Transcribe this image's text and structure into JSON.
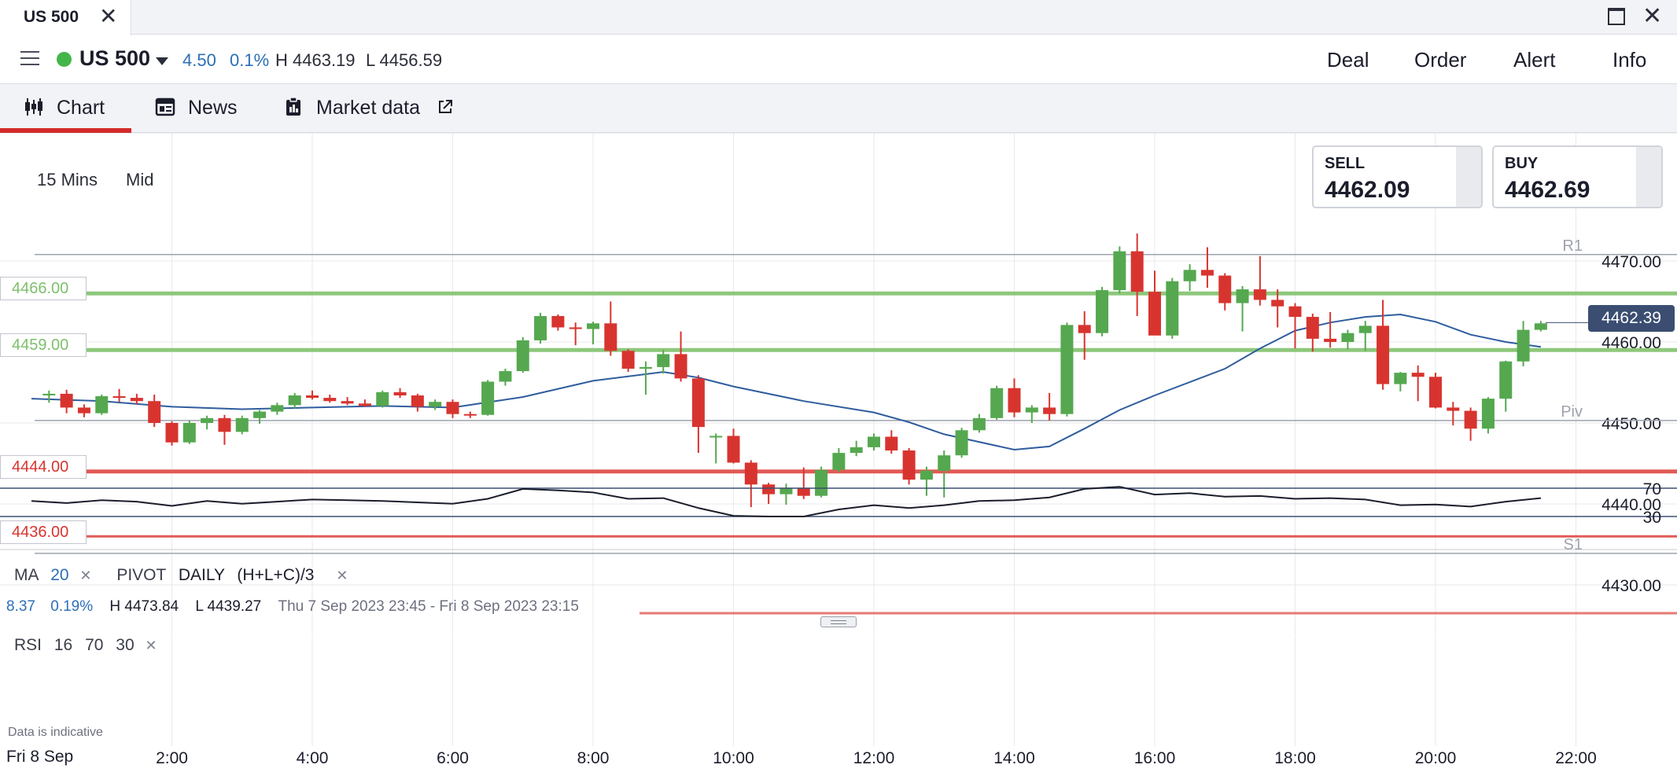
{
  "window": {
    "tab_title": "US 500",
    "close_glyph": "✕",
    "maximize_icon": "maximize-icon",
    "close_window_glyph": "✕"
  },
  "instrument": {
    "name": "US 500",
    "status_color": "#44b649",
    "change": "4.50",
    "change_pct": "0.1%",
    "high": "H 4463.19",
    "low": "L 4456.59"
  },
  "actions": [
    "Deal",
    "Order",
    "Alert",
    "Info"
  ],
  "tabs": [
    {
      "label": "Chart",
      "icon": "candlestick-icon",
      "active": true
    },
    {
      "label": "News",
      "icon": "newspaper-icon",
      "active": false
    },
    {
      "label": "Market data",
      "icon": "clipboard-icon",
      "external_icon": "external-link-icon",
      "active": false
    }
  ],
  "chart_controls": {
    "interval": "15 Mins",
    "price_type": "Mid"
  },
  "quotes": {
    "sell_label": "SELL",
    "sell_price": "4462.09",
    "buy_label": "BUY",
    "buy_price": "4462.69"
  },
  "indicators": {
    "ma_label": "MA",
    "ma_period": "20",
    "ma_remove": "✕",
    "pivot_label": "PIVOT",
    "pivot_period": "DAILY",
    "pivot_formula": "(H+L+C)/3",
    "pivot_remove": "✕"
  },
  "day_info": {
    "change": "8.37",
    "change_pct": "0.19%",
    "high": "H 4473.84",
    "low": "L 4439.27",
    "range": "Thu 7 Sep 2023 23:45 - Fri 8 Sep 2023 23:15"
  },
  "rsi": {
    "label": "RSI",
    "period": "16",
    "upper": "70",
    "lower": "30",
    "remove": "✕"
  },
  "footer": {
    "indicative": "Data is indicative",
    "date": "Fri 8 Sep"
  },
  "colors": {
    "up": "#55a84f",
    "down": "#d8342f",
    "ma": "#2f5d9e",
    "support": "#e25a55",
    "resistance": "#8ec77b",
    "tag": "#3b4e72"
  },
  "chart_data": {
    "type": "candlestick",
    "x_ticks": [
      "2:00",
      "4:00",
      "6:00",
      "8:00",
      "10:00",
      "12:00",
      "14:00",
      "16:00",
      "18:00",
      "20:00",
      "22:00"
    ],
    "y_ticks": [
      "4470.00",
      "4460.00",
      "4450.00",
      "4440.00",
      "4430.00"
    ],
    "ylim": [
      4428,
      4478
    ],
    "current_price": "4462.39",
    "pivot_lines": [
      {
        "label": "R1",
        "value": 4470.8
      },
      {
        "label": "Piv",
        "value": 4450.3
      },
      {
        "label": "S1",
        "value": 4433.9
      }
    ],
    "alert_levels": [
      {
        "label": "4466.00",
        "value": 4466.0,
        "kind": "resistance"
      },
      {
        "label": "4459.00",
        "value": 4459.0,
        "kind": "resistance"
      },
      {
        "label": "4444.00",
        "value": 4444.0,
        "kind": "support"
      },
      {
        "label": "4436.00",
        "value": 4436.0,
        "kind": "support"
      }
    ],
    "candles": [
      {
        "t": "00:15",
        "o": 4453.4,
        "h": 4454.0,
        "l": 4452.5,
        "c": 4453.6
      },
      {
        "t": "00:30",
        "o": 4453.6,
        "h": 4454.1,
        "l": 4451.2,
        "c": 4451.9
      },
      {
        "t": "00:45",
        "o": 4451.9,
        "h": 4452.3,
        "l": 4450.7,
        "c": 4451.2
      },
      {
        "t": "01:00",
        "o": 4451.2,
        "h": 4453.5,
        "l": 4451.0,
        "c": 4453.3
      },
      {
        "t": "01:15",
        "o": 4453.3,
        "h": 4454.2,
        "l": 4452.6,
        "c": 4453.1
      },
      {
        "t": "01:30",
        "o": 4453.1,
        "h": 4453.6,
        "l": 4452.3,
        "c": 4452.7
      },
      {
        "t": "01:45",
        "o": 4452.7,
        "h": 4453.5,
        "l": 4449.5,
        "c": 4450.0
      },
      {
        "t": "02:00",
        "o": 4450.0,
        "h": 4450.2,
        "l": 4447.2,
        "c": 4447.6
      },
      {
        "t": "02:15",
        "o": 4447.6,
        "h": 4450.3,
        "l": 4447.4,
        "c": 4450.0
      },
      {
        "t": "02:30",
        "o": 4450.0,
        "h": 4450.9,
        "l": 4449.2,
        "c": 4450.6
      },
      {
        "t": "02:45",
        "o": 4450.6,
        "h": 4451.0,
        "l": 4447.3,
        "c": 4448.9
      },
      {
        "t": "03:00",
        "o": 4448.9,
        "h": 4450.9,
        "l": 4448.6,
        "c": 4450.6
      },
      {
        "t": "03:15",
        "o": 4450.6,
        "h": 4451.6,
        "l": 4449.9,
        "c": 4451.4
      },
      {
        "t": "03:30",
        "o": 4451.4,
        "h": 4452.5,
        "l": 4451.0,
        "c": 4452.2
      },
      {
        "t": "03:45",
        "o": 4452.2,
        "h": 4453.7,
        "l": 4451.8,
        "c": 4453.4
      },
      {
        "t": "04:00",
        "o": 4453.4,
        "h": 4454.0,
        "l": 4452.9,
        "c": 4453.1
      },
      {
        "t": "04:15",
        "o": 4453.1,
        "h": 4453.5,
        "l": 4452.5,
        "c": 4452.7
      },
      {
        "t": "04:30",
        "o": 4452.7,
        "h": 4453.2,
        "l": 4452.2,
        "c": 4452.4
      },
      {
        "t": "04:45",
        "o": 4452.4,
        "h": 4452.9,
        "l": 4452.0,
        "c": 4452.1
      },
      {
        "t": "05:00",
        "o": 4452.1,
        "h": 4454.0,
        "l": 4451.9,
        "c": 4453.8
      },
      {
        "t": "05:15",
        "o": 4453.8,
        "h": 4454.3,
        "l": 4453.1,
        "c": 4453.4
      },
      {
        "t": "05:30",
        "o": 4453.4,
        "h": 4453.6,
        "l": 4451.4,
        "c": 4452.0
      },
      {
        "t": "05:45",
        "o": 4452.0,
        "h": 4452.9,
        "l": 4451.6,
        "c": 4452.6
      },
      {
        "t": "06:00",
        "o": 4452.6,
        "h": 4452.9,
        "l": 4450.6,
        "c": 4451.1
      },
      {
        "t": "06:15",
        "o": 4451.1,
        "h": 4451.4,
        "l": 4450.6,
        "c": 4451.0
      },
      {
        "t": "06:30",
        "o": 4451.0,
        "h": 4455.3,
        "l": 4450.9,
        "c": 4455.1
      },
      {
        "t": "06:45",
        "o": 4455.1,
        "h": 4456.7,
        "l": 4454.6,
        "c": 4456.4
      },
      {
        "t": "07:00",
        "o": 4456.4,
        "h": 4460.6,
        "l": 4456.2,
        "c": 4460.2
      },
      {
        "t": "07:15",
        "o": 4460.2,
        "h": 4463.6,
        "l": 4459.8,
        "c": 4463.2
      },
      {
        "t": "07:30",
        "o": 4463.2,
        "h": 4463.4,
        "l": 4461.4,
        "c": 4461.8
      },
      {
        "t": "07:45",
        "o": 4461.8,
        "h": 4462.4,
        "l": 4459.6,
        "c": 4461.6
      },
      {
        "t": "08:00",
        "o": 4461.6,
        "h": 4462.5,
        "l": 4459.7,
        "c": 4462.3
      },
      {
        "t": "08:15",
        "o": 4462.3,
        "h": 4465.0,
        "l": 4458.3,
        "c": 4458.9
      },
      {
        "t": "08:30",
        "o": 4458.9,
        "h": 4459.1,
        "l": 4456.3,
        "c": 4456.7
      },
      {
        "t": "08:45",
        "o": 4456.7,
        "h": 4457.6,
        "l": 4453.5,
        "c": 4456.9
      },
      {
        "t": "09:00",
        "o": 4456.9,
        "h": 4459.0,
        "l": 4456.1,
        "c": 4458.5
      },
      {
        "t": "09:15",
        "o": 4458.5,
        "h": 4461.3,
        "l": 4455.1,
        "c": 4455.5
      },
      {
        "t": "09:30",
        "o": 4455.5,
        "h": 4455.9,
        "l": 4446.3,
        "c": 4449.5
      },
      {
        "t": "09:45",
        "o": 4448.4,
        "h": 4448.7,
        "l": 4445.0,
        "c": 4448.4
      },
      {
        "t": "10:00",
        "o": 4448.4,
        "h": 4449.3,
        "l": 4445.0,
        "c": 4445.1
      },
      {
        "t": "10:15",
        "o": 4445.1,
        "h": 4445.4,
        "l": 4439.6,
        "c": 4442.4
      },
      {
        "t": "10:30",
        "o": 4442.4,
        "h": 4442.6,
        "l": 4440.0,
        "c": 4441.2
      },
      {
        "t": "10:45",
        "o": 4441.2,
        "h": 4442.5,
        "l": 4439.9,
        "c": 4442.0
      },
      {
        "t": "11:00",
        "o": 4442.0,
        "h": 4444.5,
        "l": 4440.6,
        "c": 4441.0
      },
      {
        "t": "11:15",
        "o": 4441.0,
        "h": 4444.6,
        "l": 4440.8,
        "c": 4444.2
      },
      {
        "t": "11:30",
        "o": 4444.2,
        "h": 4446.9,
        "l": 4443.9,
        "c": 4446.3
      },
      {
        "t": "11:45",
        "o": 4446.3,
        "h": 4447.8,
        "l": 4445.9,
        "c": 4447.0
      },
      {
        "t": "12:00",
        "o": 4447.0,
        "h": 4448.7,
        "l": 4446.6,
        "c": 4448.3
      },
      {
        "t": "12:15",
        "o": 4448.3,
        "h": 4449.1,
        "l": 4446.2,
        "c": 4446.6
      },
      {
        "t": "12:30",
        "o": 4446.6,
        "h": 4446.9,
        "l": 4442.4,
        "c": 4443.0
      },
      {
        "t": "12:45",
        "o": 4443.0,
        "h": 4444.6,
        "l": 4441.0,
        "c": 4444.1
      },
      {
        "t": "13:00",
        "o": 4444.1,
        "h": 4446.6,
        "l": 4440.8,
        "c": 4446.0
      },
      {
        "t": "13:15",
        "o": 4446.0,
        "h": 4449.4,
        "l": 4445.7,
        "c": 4449.1
      },
      {
        "t": "13:30",
        "o": 4449.1,
        "h": 4451.1,
        "l": 4448.8,
        "c": 4450.6
      },
      {
        "t": "13:45",
        "o": 4450.6,
        "h": 4454.6,
        "l": 4450.4,
        "c": 4454.3
      },
      {
        "t": "14:00",
        "o": 4454.3,
        "h": 4455.5,
        "l": 4450.7,
        "c": 4451.3
      },
      {
        "t": "14:15",
        "o": 4451.3,
        "h": 4452.2,
        "l": 4450.0,
        "c": 4451.9
      },
      {
        "t": "14:30",
        "o": 4451.9,
        "h": 4453.7,
        "l": 4450.3,
        "c": 4451.1
      },
      {
        "t": "14:45",
        "o": 4451.1,
        "h": 4462.4,
        "l": 4450.8,
        "c": 4462.1
      },
      {
        "t": "15:00",
        "o": 4462.1,
        "h": 4463.8,
        "l": 4457.8,
        "c": 4461.1
      },
      {
        "t": "15:15",
        "o": 4461.1,
        "h": 4466.8,
        "l": 4460.7,
        "c": 4466.4
      },
      {
        "t": "15:30",
        "o": 4466.4,
        "h": 4471.8,
        "l": 4466.0,
        "c": 4471.2
      },
      {
        "t": "15:45",
        "o": 4471.2,
        "h": 4473.4,
        "l": 4463.2,
        "c": 4466.2
      },
      {
        "t": "16:00",
        "o": 4466.2,
        "h": 4468.8,
        "l": 4460.9,
        "c": 4460.8
      },
      {
        "t": "16:15",
        "o": 4460.8,
        "h": 4467.9,
        "l": 4460.4,
        "c": 4467.5
      },
      {
        "t": "16:30",
        "o": 4467.5,
        "h": 4469.6,
        "l": 4466.3,
        "c": 4468.9
      },
      {
        "t": "16:45",
        "o": 4468.9,
        "h": 4471.7,
        "l": 4466.7,
        "c": 4468.2
      },
      {
        "t": "17:00",
        "o": 4468.2,
        "h": 4468.5,
        "l": 4463.9,
        "c": 4464.8
      },
      {
        "t": "17:15",
        "o": 4464.8,
        "h": 4466.9,
        "l": 4461.3,
        "c": 4466.5
      },
      {
        "t": "17:30",
        "o": 4466.5,
        "h": 4470.6,
        "l": 4464.5,
        "c": 4465.2
      },
      {
        "t": "17:45",
        "o": 4465.2,
        "h": 4466.5,
        "l": 4461.8,
        "c": 4464.4
      },
      {
        "t": "18:00",
        "o": 4464.4,
        "h": 4464.8,
        "l": 4459.2,
        "c": 4463.1
      },
      {
        "t": "18:15",
        "o": 4463.1,
        "h": 4463.5,
        "l": 4458.8,
        "c": 4460.4
      },
      {
        "t": "18:30",
        "o": 4460.4,
        "h": 4463.7,
        "l": 4459.3,
        "c": 4460.0
      },
      {
        "t": "18:45",
        "o": 4460.0,
        "h": 4461.5,
        "l": 4459.1,
        "c": 4461.1
      },
      {
        "t": "19:00",
        "o": 4461.1,
        "h": 4462.6,
        "l": 4458.9,
        "c": 4462.0
      },
      {
        "t": "19:15",
        "o": 4462.0,
        "h": 4465.2,
        "l": 4454.1,
        "c": 4454.8
      },
      {
        "t": "19:30",
        "o": 4454.8,
        "h": 4456.3,
        "l": 4453.9,
        "c": 4456.2
      },
      {
        "t": "19:45",
        "o": 4456.2,
        "h": 4457.1,
        "l": 4452.7,
        "c": 4455.7
      },
      {
        "t": "20:00",
        "o": 4455.7,
        "h": 4456.2,
        "l": 4451.8,
        "c": 4451.9
      },
      {
        "t": "20:15",
        "o": 4451.9,
        "h": 4452.6,
        "l": 4449.7,
        "c": 4451.5
      },
      {
        "t": "20:30",
        "o": 4451.5,
        "h": 4451.9,
        "l": 4447.8,
        "c": 4449.3
      },
      {
        "t": "20:45",
        "o": 4449.3,
        "h": 4453.2,
        "l": 4448.7,
        "c": 4453.0
      },
      {
        "t": "21:00",
        "o": 4453.0,
        "h": 4457.7,
        "l": 4451.4,
        "c": 4457.6
      },
      {
        "t": "21:15",
        "o": 4457.6,
        "h": 4462.6,
        "l": 4457.0,
        "c": 4461.5
      },
      {
        "t": "21:30",
        "o": 4461.5,
        "h": 4462.6,
        "l": 4461.3,
        "c": 4462.3
      }
    ],
    "ma_line": [
      {
        "t": "00:00",
        "v": 4453.0
      },
      {
        "t": "01:00",
        "v": 4452.7
      },
      {
        "t": "02:00",
        "v": 4452.0
      },
      {
        "t": "03:00",
        "v": 4451.7
      },
      {
        "t": "04:00",
        "v": 4451.9
      },
      {
        "t": "05:00",
        "v": 4452.1
      },
      {
        "t": "06:00",
        "v": 4451.9
      },
      {
        "t": "07:00",
        "v": 4453.2
      },
      {
        "t": "08:00",
        "v": 4455.2
      },
      {
        "t": "09:00",
        "v": 4456.3
      },
      {
        "t": "09:30",
        "v": 4455.6
      },
      {
        "t": "10:00",
        "v": 4454.5
      },
      {
        "t": "11:00",
        "v": 4452.7
      },
      {
        "t": "12:00",
        "v": 4451.3
      },
      {
        "t": "12:30",
        "v": 4450.1
      },
      {
        "t": "13:00",
        "v": 4448.6
      },
      {
        "t": "14:00",
        "v": 4446.7
      },
      {
        "t": "14:30",
        "v": 4447.1
      },
      {
        "t": "15:00",
        "v": 4449.3
      },
      {
        "t": "15:30",
        "v": 4451.6
      },
      {
        "t": "16:00",
        "v": 4453.4
      },
      {
        "t": "17:00",
        "v": 4456.7
      },
      {
        "t": "17:30",
        "v": 4459.2
      },
      {
        "t": "18:00",
        "v": 4461.4
      },
      {
        "t": "18:30",
        "v": 4462.4
      },
      {
        "t": "19:00",
        "v": 4463.1
      },
      {
        "t": "19:30",
        "v": 4463.4
      },
      {
        "t": "20:00",
        "v": 4462.5
      },
      {
        "t": "20:30",
        "v": 4460.9
      },
      {
        "t": "21:00",
        "v": 4460.0
      },
      {
        "t": "21:30",
        "v": 4459.4
      }
    ],
    "rsi_line": [
      {
        "t": "00:00",
        "v": 52
      },
      {
        "t": "00:30",
        "v": 49
      },
      {
        "t": "01:00",
        "v": 53
      },
      {
        "t": "01:30",
        "v": 51
      },
      {
        "t": "02:00",
        "v": 45
      },
      {
        "t": "02:30",
        "v": 52
      },
      {
        "t": "03:00",
        "v": 48
      },
      {
        "t": "03:30",
        "v": 51
      },
      {
        "t": "04:00",
        "v": 54
      },
      {
        "t": "04:30",
        "v": 53
      },
      {
        "t": "05:00",
        "v": 52
      },
      {
        "t": "05:30",
        "v": 50
      },
      {
        "t": "06:00",
        "v": 48
      },
      {
        "t": "06:30",
        "v": 55
      },
      {
        "t": "07:00",
        "v": 69
      },
      {
        "t": "07:30",
        "v": 67
      },
      {
        "t": "08:00",
        "v": 64
      },
      {
        "t": "08:30",
        "v": 55
      },
      {
        "t": "09:00",
        "v": 56
      },
      {
        "t": "09:30",
        "v": 42
      },
      {
        "t": "10:00",
        "v": 31
      },
      {
        "t": "10:30",
        "v": 30
      },
      {
        "t": "11:00",
        "v": 30
      },
      {
        "t": "11:30",
        "v": 40
      },
      {
        "t": "12:00",
        "v": 46
      },
      {
        "t": "12:30",
        "v": 42
      },
      {
        "t": "13:00",
        "v": 46
      },
      {
        "t": "13:30",
        "v": 52
      },
      {
        "t": "14:00",
        "v": 53
      },
      {
        "t": "14:30",
        "v": 57
      },
      {
        "t": "15:00",
        "v": 69
      },
      {
        "t": "15:30",
        "v": 72
      },
      {
        "t": "16:00",
        "v": 61
      },
      {
        "t": "16:30",
        "v": 63
      },
      {
        "t": "17:00",
        "v": 58
      },
      {
        "t": "17:30",
        "v": 59
      },
      {
        "t": "18:00",
        "v": 55
      },
      {
        "t": "18:30",
        "v": 56
      },
      {
        "t": "19:00",
        "v": 54
      },
      {
        "t": "19:30",
        "v": 46
      },
      {
        "t": "20:00",
        "v": 47
      },
      {
        "t": "20:30",
        "v": 44
      },
      {
        "t": "21:00",
        "v": 51
      },
      {
        "t": "21:30",
        "v": 56
      }
    ],
    "rsi_bounds": [
      70,
      30
    ]
  }
}
